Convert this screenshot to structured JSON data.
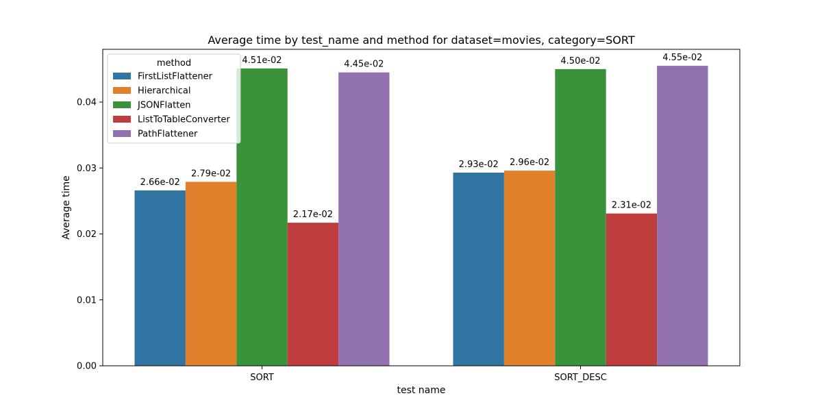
{
  "chart_data": {
    "type": "bar",
    "title": "Average time by test_name and method for dataset=movies, category=SORT",
    "xlabel": "test name",
    "ylabel": "Average time",
    "categories": [
      "SORT",
      "SORT_DESC"
    ],
    "ylim": [
      0,
      0.048
    ],
    "yticks": [
      0.0,
      0.01,
      0.02,
      0.03,
      0.04
    ],
    "ytick_labels": [
      "0.00",
      "0.01",
      "0.02",
      "0.03",
      "0.04"
    ],
    "grid": false,
    "legend": {
      "title": "method",
      "placement": "top-left"
    },
    "series": [
      {
        "name": "FirstListFlattener",
        "color": "#3274a1",
        "values": [
          0.0266,
          0.0293
        ],
        "labels": [
          "2.66e-02",
          "2.93e-02"
        ]
      },
      {
        "name": "Hierarchical",
        "color": "#e1812c",
        "values": [
          0.0279,
          0.0296
        ],
        "labels": [
          "2.79e-02",
          "2.96e-02"
        ]
      },
      {
        "name": "JSONFlatten",
        "color": "#3a923a",
        "values": [
          0.0451,
          0.045
        ],
        "labels": [
          "4.51e-02",
          "4.50e-02"
        ]
      },
      {
        "name": "ListToTableConverter",
        "color": "#c03d3e",
        "values": [
          0.0217,
          0.0231
        ],
        "labels": [
          "2.17e-02",
          "2.31e-02"
        ]
      },
      {
        "name": "PathFlattener",
        "color": "#9372b2",
        "values": [
          0.0445,
          0.0455
        ],
        "labels": [
          "4.45e-02",
          "4.55e-02"
        ]
      }
    ]
  }
}
